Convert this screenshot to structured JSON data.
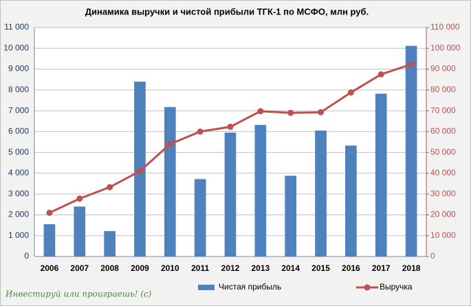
{
  "chart_data": {
    "type": "bar",
    "title": "Динамика выручки и чистой прибыли ТГК-1 по МСФО, млн руб.",
    "categories": [
      "2006",
      "2007",
      "2008",
      "2009",
      "2010",
      "2011",
      "2012",
      "2013",
      "2014",
      "2015",
      "2016",
      "2017",
      "2018"
    ],
    "series": [
      {
        "name": "Чистая прибыль",
        "type": "bar",
        "color": "#4f81bd",
        "values": [
          1550,
          2400,
          1220,
          8400,
          7180,
          3720,
          5950,
          6320,
          3880,
          6050,
          5330,
          7820,
          10120
        ]
      },
      {
        "name": "Выручка",
        "type": "line",
        "axis": "y2",
        "color": "#c0504d",
        "values": [
          21000,
          27800,
          33300,
          41000,
          54000,
          60000,
          62300,
          69800,
          69000,
          69300,
          78800,
          87500,
          92300
        ]
      }
    ],
    "ylim": [
      0,
      11000
    ],
    "yticks": [
      0,
      {
        "value": 1000,
        "label": "1 000"
      },
      {
        "value": 2000,
        "label": "2 000"
      },
      {
        "value": 3000,
        "label": "3 000"
      },
      {
        "value": 4000,
        "label": "4 000"
      },
      {
        "value": 5000,
        "label": "5 000"
      },
      {
        "value": 6000,
        "label": "6 000"
      },
      {
        "value": 7000,
        "label": "7 000"
      },
      {
        "value": 8000,
        "label": "8 000"
      },
      {
        "value": 9000,
        "label": "9 000"
      },
      {
        "value": 10000,
        "label": "10 000"
      },
      {
        "value": 11000,
        "label": "11 000"
      }
    ],
    "y2lim": [
      0,
      110000
    ],
    "y2ticks": [
      0,
      {
        "value": 10000,
        "label": "10 000"
      },
      {
        "value": 20000,
        "label": "20 000"
      },
      {
        "value": 30000,
        "label": "30 000"
      },
      {
        "value": 40000,
        "label": "40 000"
      },
      {
        "value": 50000,
        "label": "50 000"
      },
      {
        "value": 60000,
        "label": "60 000"
      },
      {
        "value": 70000,
        "label": "70 000"
      },
      {
        "value": 80000,
        "label": "80 000"
      },
      {
        "value": 90000,
        "label": "90 000"
      },
      {
        "value": 100000,
        "label": "100 000"
      },
      {
        "value": 110000,
        "label": "110 000"
      }
    ],
    "grid": true,
    "legend": "bottom",
    "annotation": "Инвестируй или проиграешь! (c)"
  }
}
